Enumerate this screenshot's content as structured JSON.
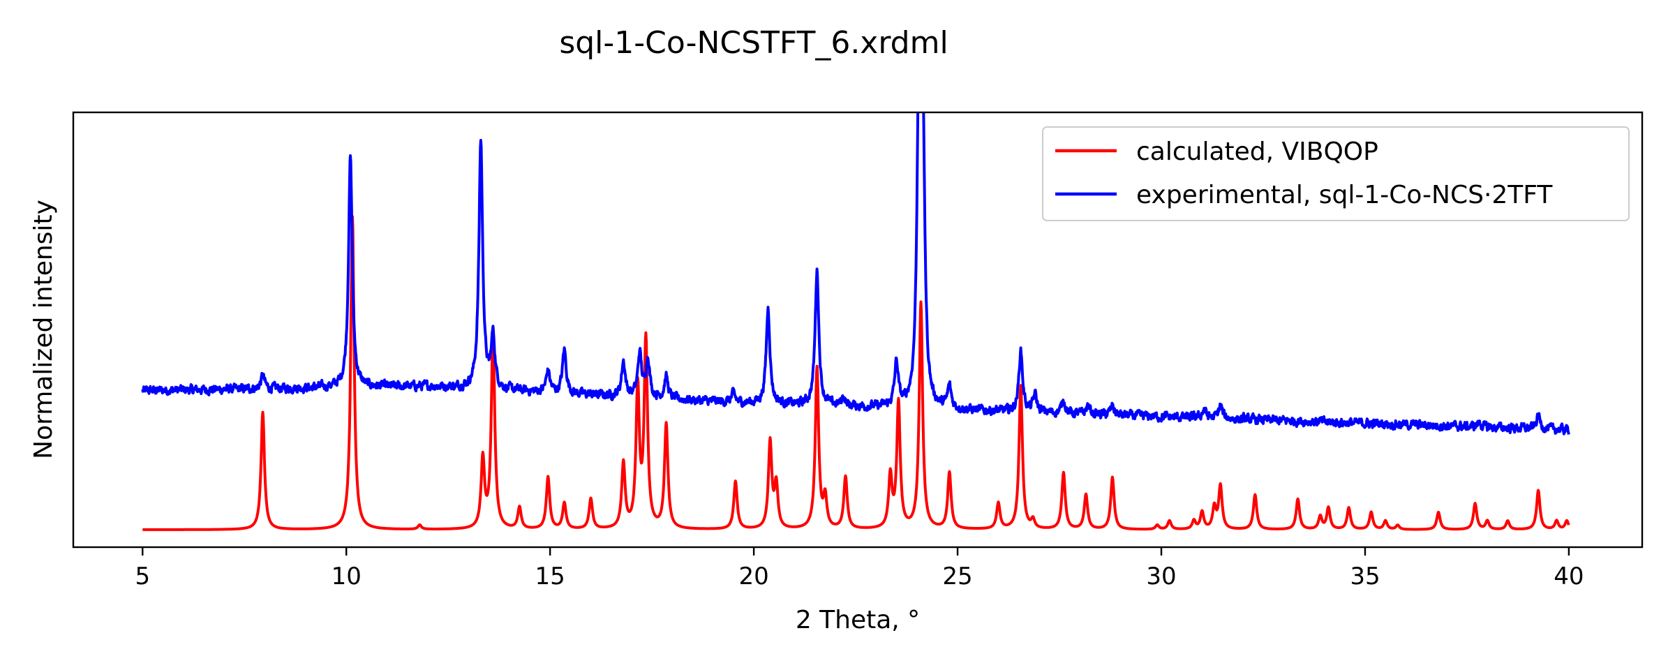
{
  "chart_data": {
    "type": "line",
    "title": "sql-1-Co-NCSTFT_6.xrdml",
    "xlabel": "2 Theta, °",
    "ylabel": "Normalized intensity",
    "xlim": [
      3.3,
      41.8
    ],
    "ylim": [
      0,
      1.0
    ],
    "xticks": [
      5,
      10,
      15,
      20,
      25,
      30,
      35,
      40
    ],
    "yticks_visible": false,
    "grid": false,
    "legend_position": "top-right",
    "series": [
      {
        "name": "calculated, VIBQOP",
        "color": "#ff0000",
        "baseline": 0.04,
        "x_range": [
          5,
          40
        ],
        "peak_width": 0.05,
        "peaks": [
          [
            7.95,
            0.27
          ],
          [
            10.15,
            0.72
          ],
          [
            11.8,
            0.01
          ],
          [
            13.35,
            0.16
          ],
          [
            13.6,
            0.46
          ],
          [
            14.25,
            0.05
          ],
          [
            14.95,
            0.12
          ],
          [
            15.35,
            0.06
          ],
          [
            16.0,
            0.07
          ],
          [
            16.8,
            0.15
          ],
          [
            17.15,
            0.32
          ],
          [
            17.35,
            0.43
          ],
          [
            17.85,
            0.24
          ],
          [
            19.55,
            0.11
          ],
          [
            20.4,
            0.2
          ],
          [
            20.55,
            0.1
          ],
          [
            21.55,
            0.37
          ],
          [
            21.75,
            0.07
          ],
          [
            22.25,
            0.12
          ],
          [
            23.35,
            0.12
          ],
          [
            23.55,
            0.29
          ],
          [
            24.1,
            0.52
          ],
          [
            24.8,
            0.13
          ],
          [
            26.0,
            0.06
          ],
          [
            26.55,
            0.33
          ],
          [
            26.85,
            0.02
          ],
          [
            27.6,
            0.13
          ],
          [
            28.15,
            0.08
          ],
          [
            28.8,
            0.12
          ],
          [
            29.9,
            0.01
          ],
          [
            30.2,
            0.02
          ],
          [
            30.8,
            0.02
          ],
          [
            31.0,
            0.04
          ],
          [
            31.3,
            0.05
          ],
          [
            31.45,
            0.1
          ],
          [
            32.3,
            0.08
          ],
          [
            33.35,
            0.07
          ],
          [
            33.9,
            0.03
          ],
          [
            34.1,
            0.05
          ],
          [
            34.6,
            0.05
          ],
          [
            35.15,
            0.04
          ],
          [
            35.5,
            0.02
          ],
          [
            35.8,
            0.01
          ],
          [
            36.8,
            0.04
          ],
          [
            37.7,
            0.06
          ],
          [
            38.0,
            0.02
          ],
          [
            38.5,
            0.02
          ],
          [
            39.25,
            0.09
          ],
          [
            39.7,
            0.02
          ],
          [
            39.95,
            0.02
          ]
        ]
      },
      {
        "name": "experimental, sql-1-Co-NCS·2TFT",
        "color": "#0000ff",
        "background_points": [
          [
            5,
            0.36
          ],
          [
            12,
            0.37
          ],
          [
            20,
            0.33
          ],
          [
            30,
            0.3
          ],
          [
            40,
            0.27
          ]
        ],
        "x_range": [
          5,
          40
        ],
        "peak_width": 0.055,
        "noise_amplitude": 0.008,
        "peaks": [
          [
            7.95,
            0.03
          ],
          [
            10.1,
            0.53
          ],
          [
            13.3,
            0.57
          ],
          [
            13.6,
            0.12
          ],
          [
            14.95,
            0.05
          ],
          [
            15.35,
            0.1
          ],
          [
            16.8,
            0.08
          ],
          [
            17.2,
            0.1
          ],
          [
            17.4,
            0.09
          ],
          [
            17.85,
            0.05
          ],
          [
            19.5,
            0.02
          ],
          [
            20.35,
            0.22
          ],
          [
            21.55,
            0.31
          ],
          [
            22.2,
            0.02
          ],
          [
            23.5,
            0.1
          ],
          [
            24.05,
            0.71
          ],
          [
            24.15,
            0.6
          ],
          [
            24.8,
            0.05
          ],
          [
            26.55,
            0.14
          ],
          [
            26.9,
            0.04
          ],
          [
            27.6,
            0.03
          ],
          [
            28.2,
            0.02
          ],
          [
            28.8,
            0.02
          ],
          [
            31.05,
            0.02
          ],
          [
            31.45,
            0.03
          ],
          [
            37.8,
            0.01
          ],
          [
            39.25,
            0.03
          ]
        ]
      }
    ]
  }
}
